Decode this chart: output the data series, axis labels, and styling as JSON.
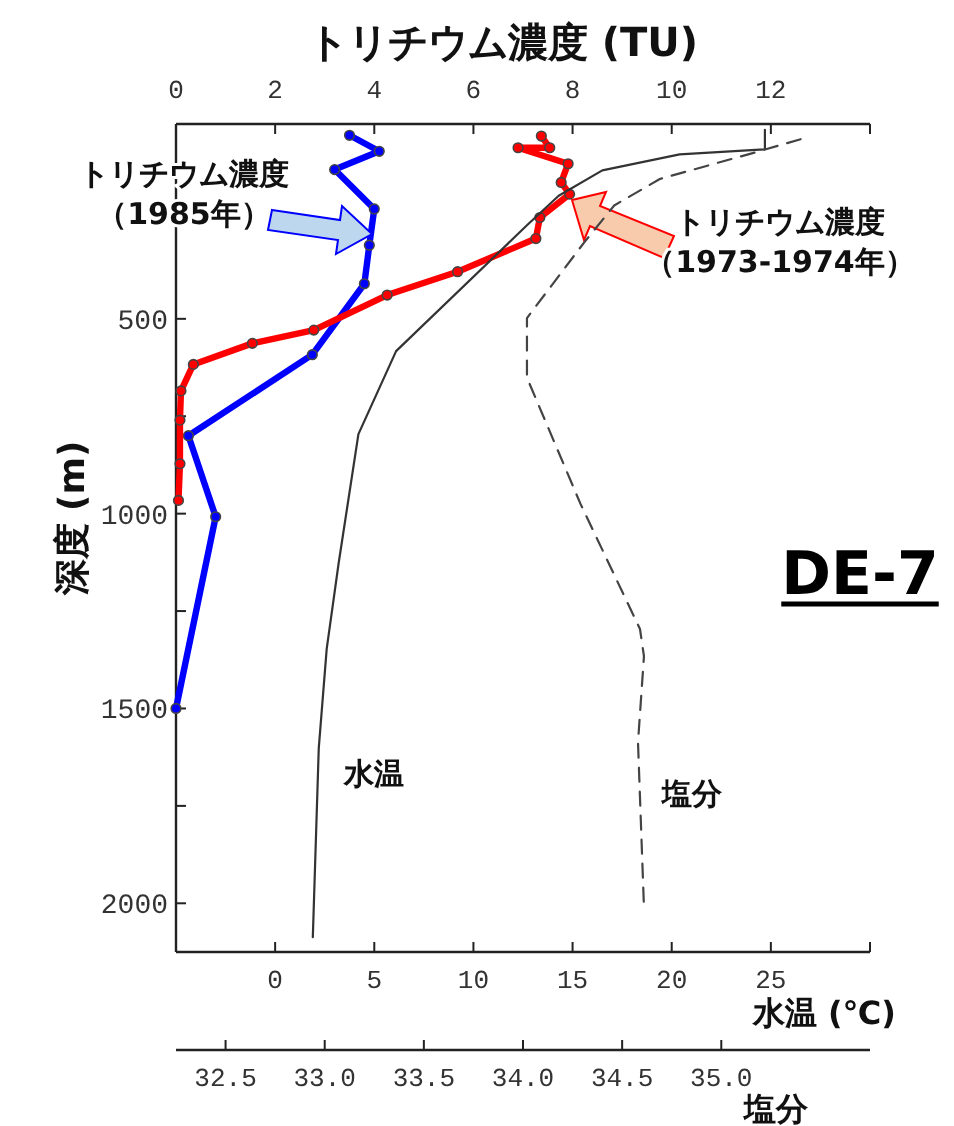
{
  "chart_data": [
    {
      "type": "line",
      "x2label": "トリチウム濃度 (TU)",
      "ylabel": "深度 (m)",
      "xlabel": "水温 (℃)",
      "xlim": [
        -5,
        30
      ],
      "xticks": [
        0,
        5,
        10,
        15,
        20,
        25,
        {
          "value": 30,
          "label": null
        }
      ],
      "x2lim": [
        0,
        14
      ],
      "x2ticks": [
        0,
        2,
        4,
        6,
        8,
        10,
        12,
        {
          "value": 14,
          "label": null
        }
      ],
      "ylim": [
        2125,
        0
      ],
      "yticks": [
        {
          "value": 250,
          "label": null
        },
        500,
        {
          "value": 750,
          "label": null
        },
        1000,
        {
          "value": 1250,
          "label": null
        },
        1500,
        {
          "value": 1750,
          "label": null
        },
        2000
      ],
      "grid": false,
      "series": [
        {
          "name": "トリチウム濃度（1985年）",
          "color": "#0000ff",
          "axis": "x2",
          "marker": "circle",
          "line_style": "solid",
          "x": [
            3.5,
            4.1,
            3.2,
            4.0,
            3.9,
            3.8,
            2.75,
            0.25,
            0.8,
            0
          ],
          "values": [
            29,
            70,
            117,
            218,
            311,
            410,
            592,
            800,
            1008,
            1500
          ]
        },
        {
          "name": "トリチウム濃度（1973-1974年）",
          "color": "#ff0000",
          "axis": "x2",
          "marker": "circle",
          "line_style": "solid",
          "x": [
            7.37,
            7.54,
            6.9,
            7.91,
            7.77,
            7.94,
            7.34,
            7.26,
            5.68,
            4.26,
            2.78,
            1.54,
            0.35,
            0.1,
            0.08,
            0.08,
            0.05
          ],
          "values": [
            31,
            61,
            61,
            102,
            150,
            180,
            240,
            294,
            379,
            439,
            529,
            563,
            617,
            685,
            760,
            872,
            966
          ]
        },
        {
          "name": "水温",
          "color": "#333333",
          "marker": "none",
          "line_style": "solid",
          "x": [
            24.7,
            24.7,
            20.4,
            16.5,
            14.3,
            12.7,
            6.1,
            4.2,
            3.2,
            2.6,
            2.2,
            1.9
          ],
          "values": [
            15,
            65,
            78,
            119,
            184,
            260,
            583,
            796,
            1128,
            1347,
            1602,
            2087
          ]
        }
      ],
      "annotations": [
        "DE-7"
      ]
    },
    {
      "type": "line",
      "xlabel": "塩分",
      "xlim": [
        32.25,
        35.75
      ],
      "xticks": [
        {
          "value": 32.5,
          "label": "32.5"
        },
        {
          "value": 33.0,
          "label": "33.0"
        },
        {
          "value": 33.5,
          "label": "33.5"
        },
        {
          "value": 34.0,
          "label": "34.0"
        },
        {
          "value": 34.5,
          "label": "34.5"
        },
        {
          "value": 35.0,
          "label": "35.0"
        }
      ],
      "ylim": [
        2125,
        0
      ],
      "tick_labels": "x",
      "grid": false,
      "series": [
        {
          "name": "塩分",
          "color": "#444444",
          "marker": "none",
          "line_style": "dashed",
          "x": [
            35.4,
            35.17,
            34.69,
            34.46,
            34.31,
            34.02,
            34.02,
            34.29,
            34.59,
            34.61,
            34.58,
            34.61
          ],
          "values": [
            39,
            73,
            141,
            209,
            303,
            498,
            651,
            975,
            1296,
            1366,
            1587,
            2010
          ]
        }
      ]
    }
  ]
}
